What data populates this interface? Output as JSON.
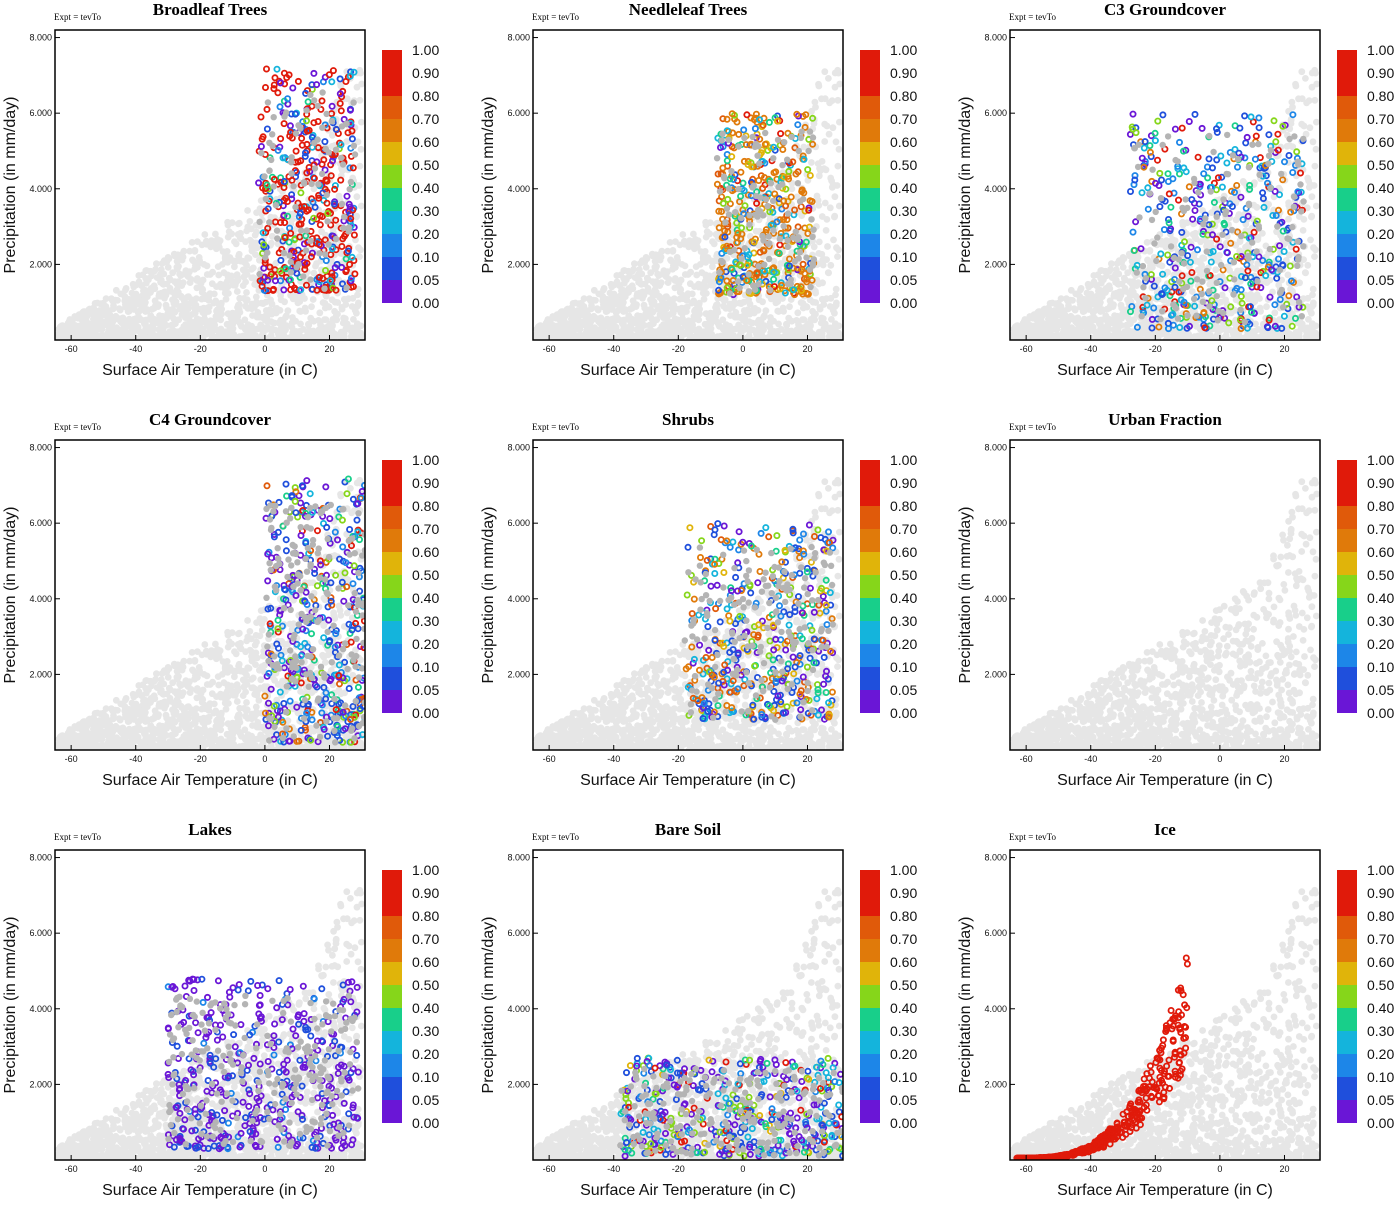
{
  "chart_data": [
    {
      "type": "scatter",
      "title": "Broadleaf Trees",
      "expt": "Expt = tevTo",
      "xlabel": "Surface Air Temperature (in C)",
      "ylabel": "Precipitation (in mm/day)",
      "xlim": [
        -65,
        31
      ],
      "ylim": [
        0,
        8200
      ],
      "xticks": [
        "-60",
        "-40",
        "-20",
        "0",
        "20"
      ],
      "yticks": [
        "2.000",
        "4.000",
        "6.000",
        "8.000"
      ],
      "colorbar": [
        "1.00",
        "0.90",
        "0.80",
        "0.70",
        "0.60",
        "0.50",
        "0.40",
        "0.30",
        "0.20",
        "0.10",
        "0.05",
        "0.00"
      ],
      "highlight": {
        "xmin": -2,
        "xmax": 28,
        "ymin": 1300,
        "ymax": 7200,
        "levels": [
          1,
          2,
          3,
          4,
          5,
          6,
          10
        ],
        "weights": [
          4,
          3,
          2,
          2,
          1,
          1,
          14
        ],
        "grayFrac": 0.2
      }
    },
    {
      "type": "scatter",
      "title": "Needleleaf Trees",
      "expt": "Expt = tevTo",
      "xlabel": "Surface Air Temperature (in C)",
      "ylabel": "Precipitation (in mm/day)",
      "xlim": [
        -65,
        31
      ],
      "ylim": [
        0,
        8200
      ],
      "xticks": [
        "-60",
        "-40",
        "-20",
        "0",
        "20"
      ],
      "yticks": [
        "2.000",
        "4.000",
        "6.000",
        "8.000"
      ],
      "colorbar": [
        "1.00",
        "0.90",
        "0.80",
        "0.70",
        "0.60",
        "0.50",
        "0.40",
        "0.30",
        "0.20",
        "0.10",
        "0.05",
        "0.00"
      ],
      "highlight": {
        "xmin": -8,
        "xmax": 22,
        "ymin": 1200,
        "ymax": 6000,
        "levels": [
          1,
          2,
          3,
          4,
          5,
          6,
          7,
          8,
          9,
          10
        ],
        "weights": [
          2,
          2,
          2,
          3,
          3,
          3,
          4,
          14,
          3,
          1
        ],
        "grayFrac": 0.25
      }
    },
    {
      "type": "scatter",
      "title": "C3 Groundcover",
      "expt": "Expt = tevTo",
      "xlabel": "Surface Air Temperature (in C)",
      "ylabel": "Precipitation (in mm/day)",
      "xlim": [
        -65,
        31
      ],
      "ylim": [
        0,
        8200
      ],
      "xticks": [
        "-60",
        "-40",
        "-20",
        "0",
        "20"
      ],
      "yticks": [
        "2.000",
        "4.000",
        "6.000",
        "8.000"
      ],
      "colorbar": [
        "1.00",
        "0.90",
        "0.80",
        "0.70",
        "0.60",
        "0.50",
        "0.40",
        "0.30",
        "0.20",
        "0.10",
        "0.05",
        "0.00"
      ],
      "highlight": {
        "xmin": -28,
        "xmax": 26,
        "ymin": 300,
        "ymax": 6000,
        "levels": [
          1,
          2,
          3,
          4,
          5,
          6,
          8,
          10,
          11
        ],
        "weights": [
          8,
          10,
          6,
          5,
          4,
          3,
          3,
          2,
          2
        ],
        "grayFrac": 0.3
      }
    },
    {
      "type": "scatter",
      "title": "C4 Groundcover",
      "expt": "Expt = tevTo",
      "xlabel": "Surface Air Temperature (in C)",
      "ylabel": "Precipitation (in mm/day)",
      "xlim": [
        -65,
        31
      ],
      "ylim": [
        0,
        8200
      ],
      "xticks": [
        "-60",
        "-40",
        "-20",
        "0",
        "20"
      ],
      "yticks": [
        "2.000",
        "4.000",
        "6.000",
        "8.000"
      ],
      "colorbar": [
        "1.00",
        "0.90",
        "0.80",
        "0.70",
        "0.60",
        "0.50",
        "0.40",
        "0.30",
        "0.20",
        "0.10",
        "0.05",
        "0.00"
      ],
      "highlight": {
        "xmin": 0,
        "xmax": 31,
        "ymin": 200,
        "ymax": 7200,
        "levels": [
          1,
          2,
          3,
          4,
          5,
          6,
          8,
          9,
          10
        ],
        "weights": [
          10,
          10,
          6,
          4,
          3,
          3,
          2,
          3,
          2
        ],
        "grayFrac": 0.4
      }
    },
    {
      "type": "scatter",
      "title": "Shrubs",
      "expt": "Expt = tevTo",
      "xlabel": "Surface Air Temperature (in C)",
      "ylabel": "Precipitation (in mm/day)",
      "xlim": [
        -65,
        31
      ],
      "ylim": [
        0,
        8200
      ],
      "xticks": [
        "-60",
        "-40",
        "-20",
        "0",
        "20"
      ],
      "yticks": [
        "2.000",
        "4.000",
        "6.000",
        "8.000"
      ],
      "colorbar": [
        "1.00",
        "0.90",
        "0.80",
        "0.70",
        "0.60",
        "0.50",
        "0.40",
        "0.30",
        "0.20",
        "0.10",
        "0.05",
        "0.00"
      ],
      "highlight": {
        "xmin": -18,
        "xmax": 28,
        "ymin": 800,
        "ymax": 6000,
        "levels": [
          1,
          2,
          3,
          4,
          5,
          6,
          7,
          8,
          9
        ],
        "weights": [
          8,
          10,
          4,
          4,
          3,
          3,
          4,
          6,
          6
        ],
        "grayFrac": 0.35
      }
    },
    {
      "type": "scatter",
      "title": "Urban Fraction",
      "expt": "Expt = tevTo",
      "xlabel": "Surface Air Temperature (in C)",
      "ylabel": "Precipitation (in mm/day)",
      "xlim": [
        -65,
        31
      ],
      "ylim": [
        0,
        8200
      ],
      "xticks": [
        "-60",
        "-40",
        "-20",
        "0",
        "20"
      ],
      "yticks": [
        "2.000",
        "4.000",
        "6.000",
        "8.000"
      ],
      "colorbar": [
        "1.00",
        "0.90",
        "0.80",
        "0.70",
        "0.60",
        "0.50",
        "0.40",
        "0.30",
        "0.20",
        "0.10",
        "0.05",
        "0.00"
      ],
      "highlight": {
        "xmin": 0,
        "xmax": 0,
        "ymin": 0,
        "ymax": 0,
        "levels": [],
        "weights": [],
        "grayFrac": 0
      }
    },
    {
      "type": "scatter",
      "title": "Lakes",
      "expt": "Expt = tevTo",
      "xlabel": "Surface Air Temperature (in C)",
      "ylabel": "Precipitation (in mm/day)",
      "xlim": [
        -65,
        31
      ],
      "ylim": [
        0,
        8200
      ],
      "xticks": [
        "-60",
        "-40",
        "-20",
        "0",
        "20"
      ],
      "yticks": [
        "2.000",
        "4.000",
        "6.000",
        "8.000"
      ],
      "colorbar": [
        "1.00",
        "0.90",
        "0.80",
        "0.70",
        "0.60",
        "0.50",
        "0.40",
        "0.30",
        "0.20",
        "0.10",
        "0.05",
        "0.00"
      ],
      "highlight": {
        "xmin": -30,
        "xmax": 29,
        "ymin": 300,
        "ymax": 4800,
        "levels": [
          1,
          2,
          3
        ],
        "weights": [
          10,
          4,
          1
        ],
        "grayFrac": 0.55
      }
    },
    {
      "type": "scatter",
      "title": "Bare Soil",
      "expt": "Expt = tevTo",
      "xlabel": "Surface Air Temperature (in C)",
      "ylabel": "Precipitation (in mm/day)",
      "xlim": [
        -65,
        31
      ],
      "ylim": [
        0,
        8200
      ],
      "xticks": [
        "-60",
        "-40",
        "-20",
        "0",
        "20"
      ],
      "yticks": [
        "2.000",
        "4.000",
        "6.000",
        "8.000"
      ],
      "colorbar": [
        "1.00",
        "0.90",
        "0.80",
        "0.70",
        "0.60",
        "0.50",
        "0.40",
        "0.30",
        "0.20",
        "0.10",
        "0.05",
        "0.00"
      ],
      "highlight": {
        "xmin": -38,
        "xmax": 31,
        "ymin": 100,
        "ymax": 2700,
        "levels": [
          1,
          2,
          3,
          4,
          5,
          6,
          7,
          11
        ],
        "weights": [
          10,
          8,
          4,
          3,
          3,
          3,
          2,
          3
        ],
        "grayFrac": 0.45
      }
    },
    {
      "type": "scatter",
      "title": "Ice",
      "expt": "Expt = tevTo",
      "xlabel": "Surface Air Temperature (in C)",
      "ylabel": "Precipitation (in mm/day)",
      "xlim": [
        -65,
        31
      ],
      "ylim": [
        0,
        8200
      ],
      "xticks": [
        "-60",
        "-40",
        "-20",
        "0",
        "20"
      ],
      "yticks": [
        "2.000",
        "4.000",
        "6.000",
        "8.000"
      ],
      "colorbar": [
        "1.00",
        "0.90",
        "0.80",
        "0.70",
        "0.60",
        "0.50",
        "0.40",
        "0.30",
        "0.20",
        "0.10",
        "0.05",
        "0.00"
      ],
      "highlight": {
        "xmin": -63,
        "xmax": -10,
        "ymin": 50,
        "ymax": 5000,
        "levels": [
          11
        ],
        "weights": [
          1
        ],
        "grayFrac": 0
      }
    }
  ],
  "palette": [
    "#b4b4b4",
    "#6a16d6",
    "#1f4fdc",
    "#1d86e8",
    "#14b4dc",
    "#18cf8a",
    "#86d61a",
    "#e0b40a",
    "#e07a0a",
    "#e05a0a",
    "#e01a0a",
    "#e01a0a"
  ],
  "background_points_color": "#e6e6e6"
}
